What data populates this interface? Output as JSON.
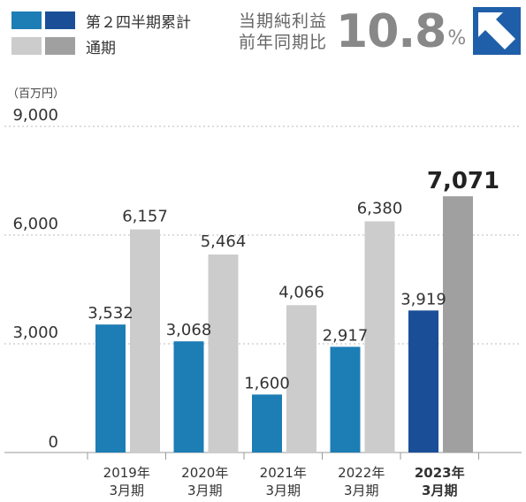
{
  "legend": {
    "q2_label": "第２四半期累計",
    "full_label": "通期"
  },
  "headline": {
    "label_line1": "当期純利益",
    "label_line2": "前年同期比",
    "value": "10.8",
    "unit": "%",
    "arrow_icon": "up-left-arrow-icon"
  },
  "colors": {
    "q2": "#1d7db5",
    "q2_highlight": "#1a4f98",
    "full": "#cccccc",
    "full_highlight": "#a0a0a0",
    "accent": "#1f5ea8"
  },
  "chart_data": {
    "type": "bar",
    "ylabel": "（百万円）",
    "ylim": [
      0,
      9000
    ],
    "yticks": [
      0,
      3000,
      6000,
      9000
    ],
    "ytick_labels": [
      "0",
      "3,000",
      "6,000",
      "9,000"
    ],
    "grid": true,
    "legend_position": "top-left",
    "categories": [
      [
        "2019年",
        "3月期"
      ],
      [
        "2020年",
        "3月期"
      ],
      [
        "2021年",
        "3月期"
      ],
      [
        "2022年",
        "3月期"
      ],
      [
        "2023年",
        "3月期"
      ]
    ],
    "highlight_index": 4,
    "series": [
      {
        "name": "第２四半期累計",
        "values": [
          3532,
          3068,
          1600,
          2917,
          3919
        ],
        "labels": [
          "3,532",
          "3,068",
          "1,600",
          "2,917",
          "3,919"
        ]
      },
      {
        "name": "通期",
        "values": [
          6157,
          5464,
          4066,
          6380,
          7071
        ],
        "labels": [
          "6,157",
          "5,464",
          "4,066",
          "6,380",
          "7,071"
        ]
      }
    ]
  }
}
